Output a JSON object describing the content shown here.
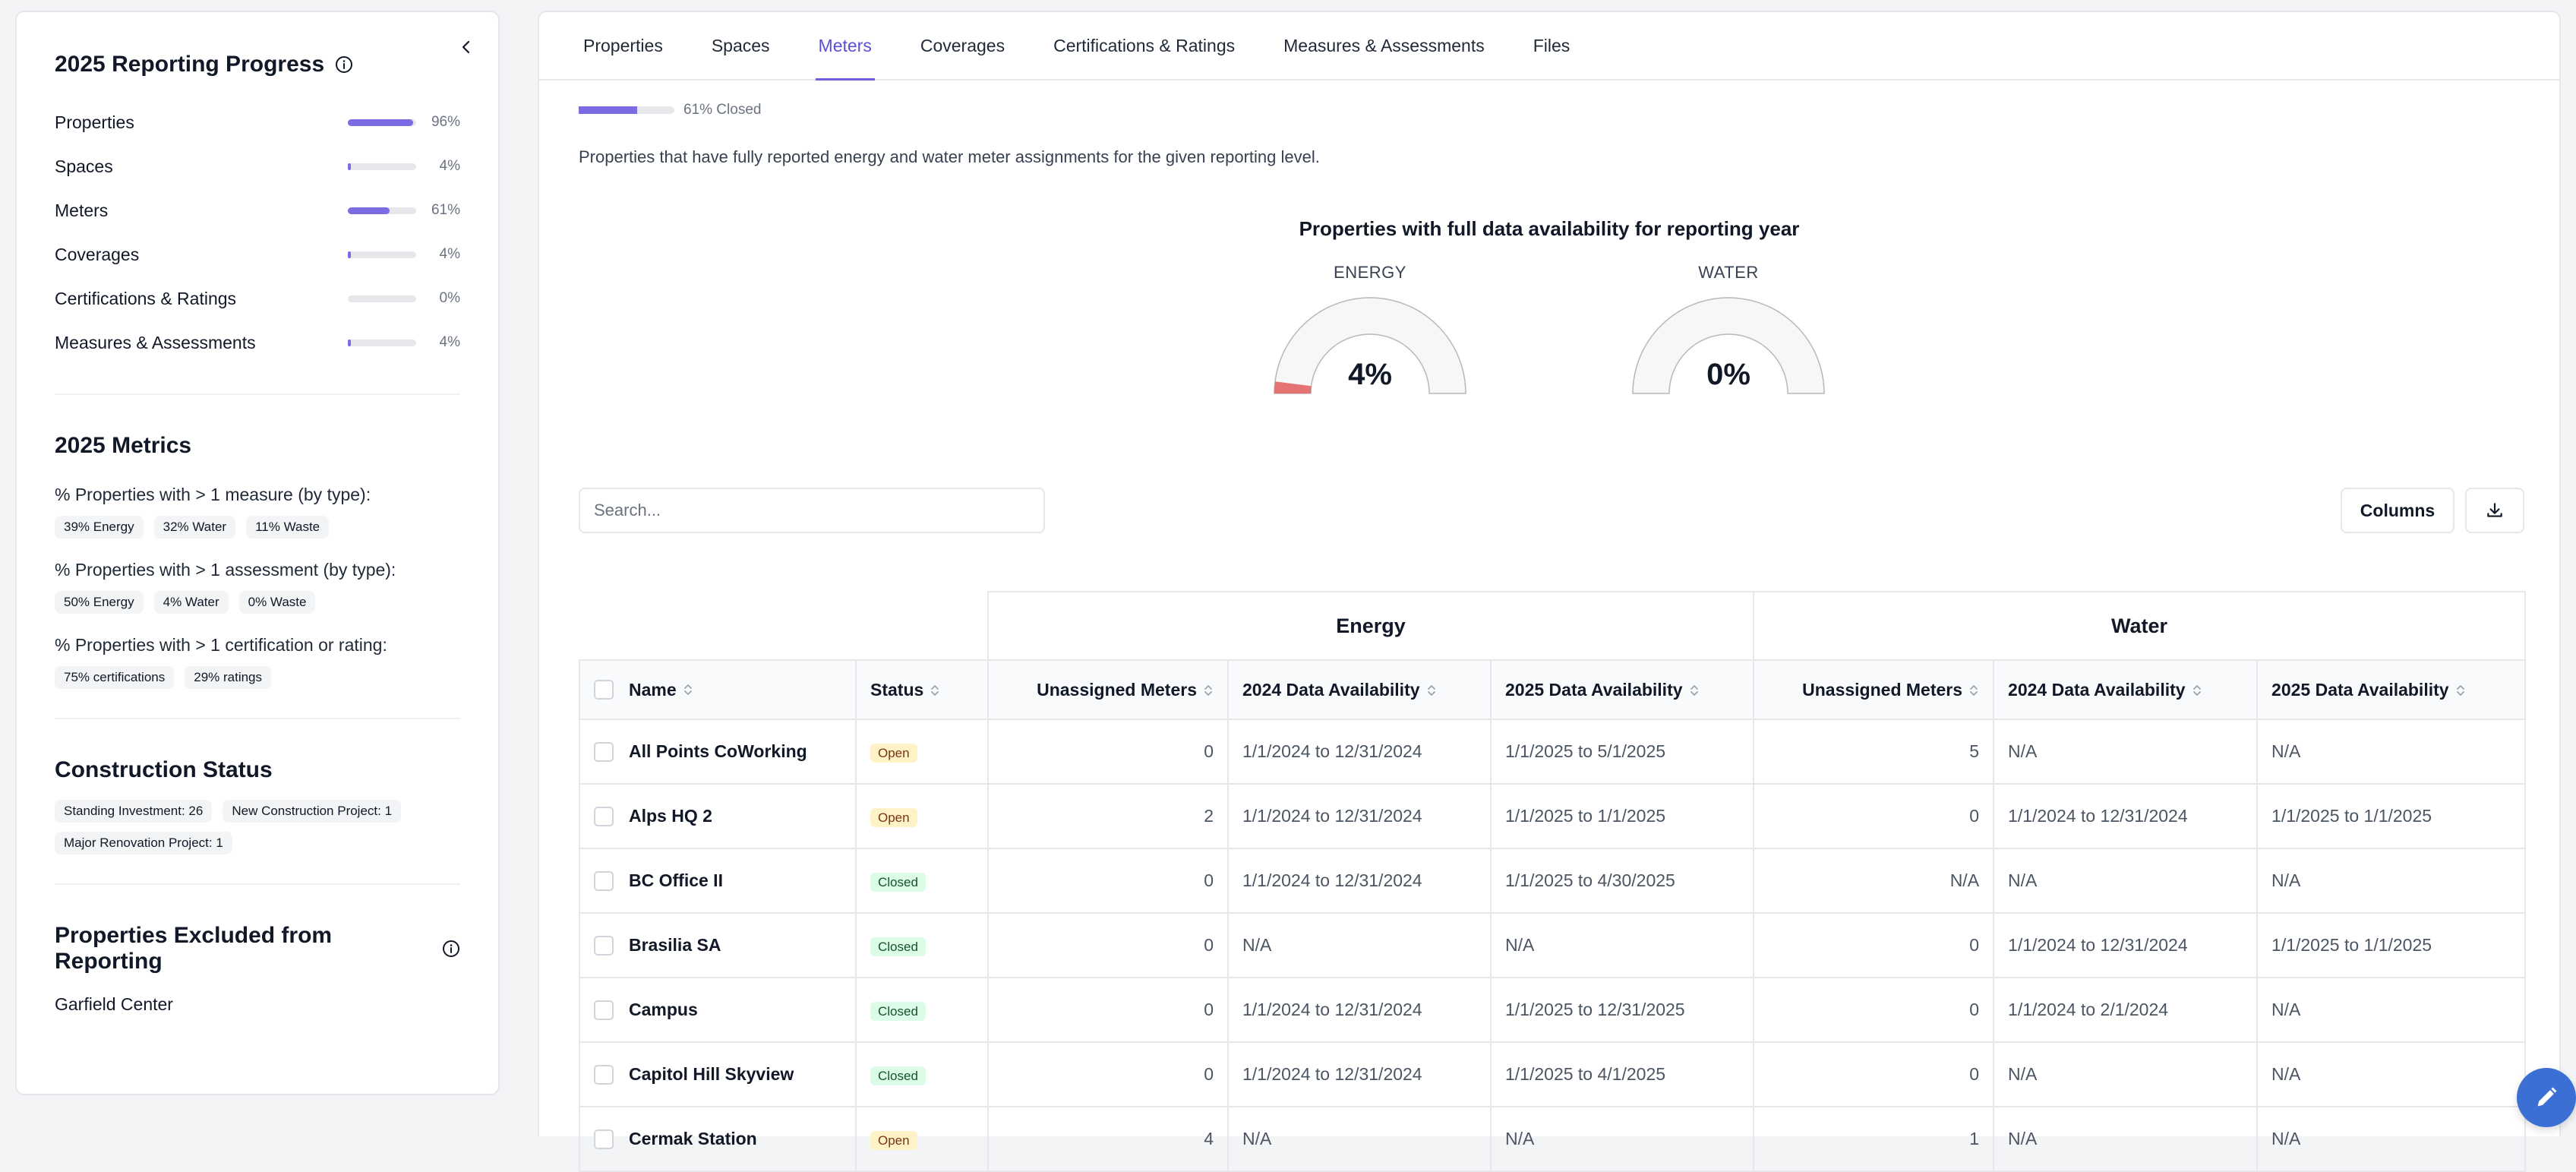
{
  "sidebar": {
    "progress": {
      "title": "2025 Reporting Progress",
      "items": [
        {
          "label": "Properties",
          "pct": "96%",
          "value": 96
        },
        {
          "label": "Spaces",
          "pct": "4%",
          "value": 4
        },
        {
          "label": "Meters",
          "pct": "61%",
          "value": 61
        },
        {
          "label": "Coverages",
          "pct": "4%",
          "value": 4
        },
        {
          "label": "Certifications & Ratings",
          "pct": "0%",
          "value": 0
        },
        {
          "label": "Measures & Assessments",
          "pct": "4%",
          "value": 4
        }
      ]
    },
    "metrics": {
      "title": "2025 Metrics",
      "groups": [
        {
          "question": "% Properties with > 1 measure (by type):",
          "chips": [
            "39% Energy",
            "32% Water",
            "11% Waste"
          ]
        },
        {
          "question": "% Properties with > 1 assessment (by type):",
          "chips": [
            "50% Energy",
            "4% Water",
            "0% Waste"
          ]
        },
        {
          "question": "% Properties with > 1 certification or rating:",
          "chips": [
            "75% certifications",
            "29% ratings"
          ]
        }
      ]
    },
    "construction": {
      "title": "Construction Status",
      "chips": [
        "Standing Investment: 26",
        "New Construction Project: 1",
        "Major Renovation Project: 1"
      ]
    },
    "excluded": {
      "title": "Properties Excluded from Reporting",
      "items": [
        "Garfield Center"
      ]
    }
  },
  "tabs": [
    "Properties",
    "Spaces",
    "Meters",
    "Coverages",
    "Certifications & Ratings",
    "Measures & Assessments",
    "Files"
  ],
  "active_tab": "Meters",
  "closed_progress": {
    "text": "61% Closed",
    "value": 61
  },
  "description": "Properties that have fully reported energy and water meter assignments for the given reporting level.",
  "gauges": {
    "title": "Properties with full data availability for reporting year",
    "items": [
      {
        "label": "ENERGY",
        "value_text": "4%",
        "value": 4,
        "color": "#e57373"
      },
      {
        "label": "WATER",
        "value_text": "0%",
        "value": 0,
        "color": "#e57373"
      }
    ]
  },
  "toolbar": {
    "search_placeholder": "Search...",
    "columns_label": "Columns"
  },
  "table": {
    "groups": {
      "energy": "Energy",
      "water": "Water"
    },
    "headers": {
      "name": "Name",
      "status": "Status",
      "unassigned": "Unassigned Meters",
      "avail_2024": "2024 Data Availability",
      "avail_2025": "2025 Data Availability"
    },
    "rows": [
      {
        "name": "All Points CoWorking",
        "status": "Open",
        "e_unassigned": "0",
        "e_2024": "1/1/2024 to 12/31/2024",
        "e_2025": "1/1/2025 to 5/1/2025",
        "w_unassigned": "5",
        "w_2024": "N/A",
        "w_2025": "N/A"
      },
      {
        "name": "Alps HQ 2",
        "status": "Open",
        "e_unassigned": "2",
        "e_2024": "1/1/2024 to 12/31/2024",
        "e_2025": "1/1/2025 to 1/1/2025",
        "w_unassigned": "0",
        "w_2024": "1/1/2024 to 12/31/2024",
        "w_2025": "1/1/2025 to 1/1/2025"
      },
      {
        "name": "BC Office II",
        "status": "Closed",
        "e_unassigned": "0",
        "e_2024": "1/1/2024 to 12/31/2024",
        "e_2025": "1/1/2025 to 4/30/2025",
        "w_unassigned": "N/A",
        "w_2024": "N/A",
        "w_2025": "N/A"
      },
      {
        "name": "Brasilia SA",
        "status": "Closed",
        "e_unassigned": "0",
        "e_2024": "N/A",
        "e_2025": "N/A",
        "w_unassigned": "0",
        "w_2024": "1/1/2024 to 12/31/2024",
        "w_2025": "1/1/2025 to 1/1/2025"
      },
      {
        "name": "Campus",
        "status": "Closed",
        "e_unassigned": "0",
        "e_2024": "1/1/2024 to 12/31/2024",
        "e_2025": "1/1/2025 to 12/31/2025",
        "w_unassigned": "0",
        "w_2024": "1/1/2024 to 2/1/2024",
        "w_2025": "N/A"
      },
      {
        "name": "Capitol Hill Skyview",
        "status": "Closed",
        "e_unassigned": "0",
        "e_2024": "1/1/2024 to 12/31/2024",
        "e_2025": "1/1/2025 to 4/1/2025",
        "w_unassigned": "0",
        "w_2024": "N/A",
        "w_2025": "N/A"
      },
      {
        "name": "Cermak Station",
        "status": "Open",
        "e_unassigned": "4",
        "e_2024": "N/A",
        "e_2025": "N/A",
        "w_unassigned": "1",
        "w_2024": "N/A",
        "w_2025": "N/A"
      }
    ]
  },
  "icons": {
    "collapse": "chevron-left-icon",
    "info": "info-circle-icon",
    "sort": "sort-arrows-icon",
    "download": "download-icon",
    "edit": "pencil-icon"
  }
}
